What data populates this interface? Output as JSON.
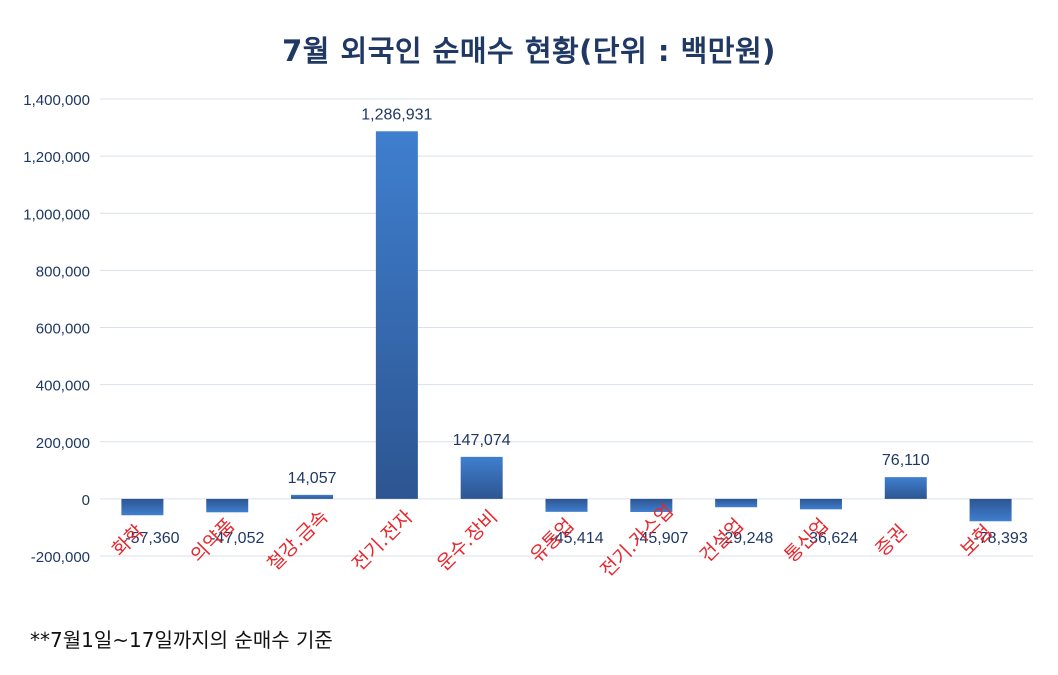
{
  "chart_data": {
    "type": "bar",
    "title": "7월 외국인 순매수 현황(단위 : 백만원)",
    "categories": [
      "화학",
      "의약품",
      "철강.금속",
      "전기.전자",
      "운수.장비",
      "유통업",
      "전기.가스업",
      "건설업",
      "통신업",
      "증권",
      "보험"
    ],
    "values": [
      -57360,
      -47052,
      14057,
      1286931,
      147074,
      -45414,
      -45907,
      -29248,
      -36624,
      76110,
      -78393
    ],
    "data_labels": [
      "-57,360",
      "-47,052",
      "14,057",
      "1,286,931",
      "147,074",
      "-45,414",
      "-45,907",
      "-29,248",
      "-36,624",
      "76,110",
      "-78,393"
    ],
    "y_ticks": [
      "-200,000",
      "0",
      "200,000",
      "400,000",
      "600,000",
      "800,000",
      "1,000,000",
      "1,200,000",
      "1,400,000"
    ],
    "ylim": [
      -200000,
      1400000
    ],
    "grid": true,
    "legend": "none",
    "colors": {
      "bar": "#3b74bd",
      "bar_dark": "#2d5591",
      "label": "#1f3864",
      "category_label": "#e8262c",
      "grid": "#d9e1ec",
      "title": "#1f3864"
    }
  },
  "footnote": "**7월1일~17일까지의 순매수 기준"
}
